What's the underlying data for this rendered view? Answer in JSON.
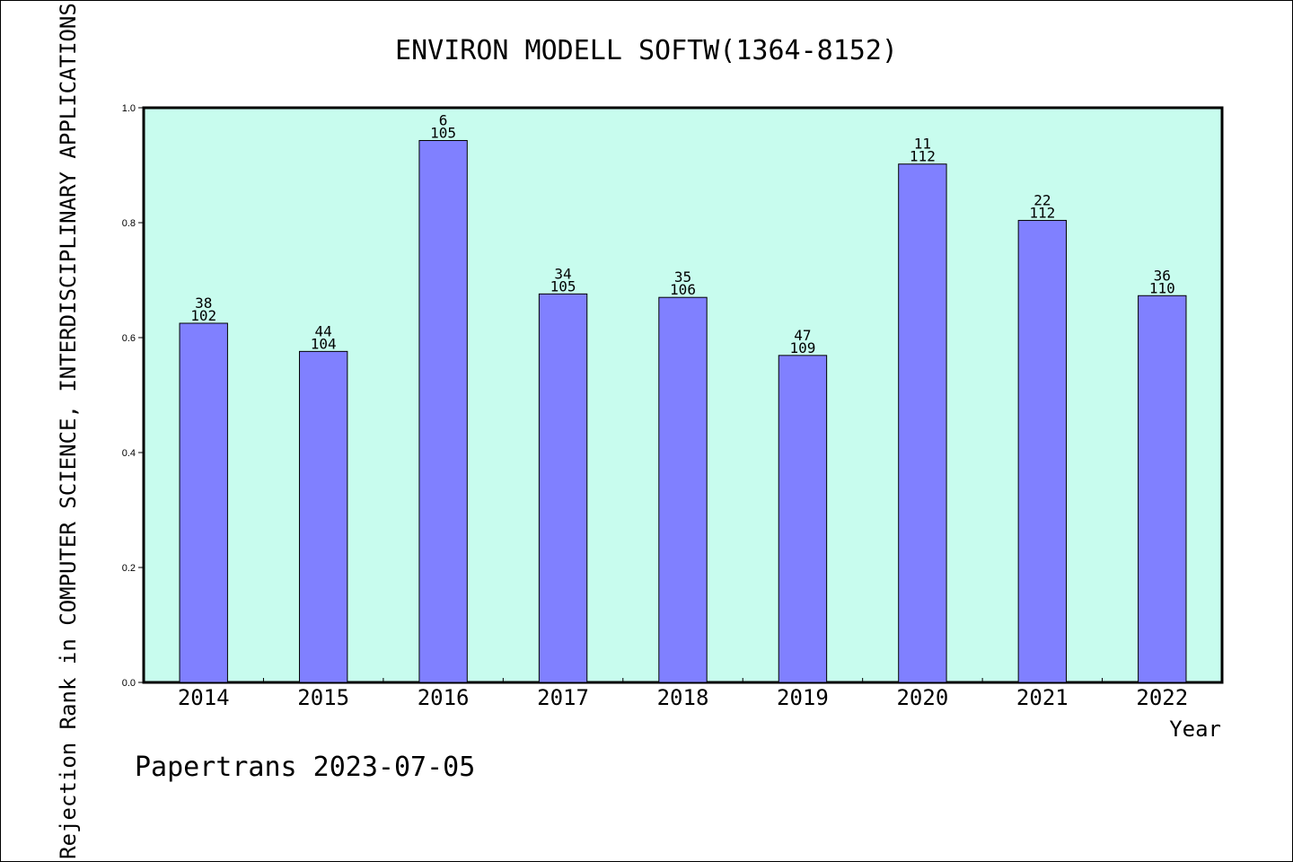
{
  "colors": {
    "plot_background": "#c8fcee",
    "bar_fill": "#8080ff",
    "bar_stroke": "#000000"
  },
  "footer": {
    "credit": "Papertrans 2023-07-05"
  },
  "chart_data": {
    "type": "bar",
    "title": "ENVIRON MODELL SOFTW(1364-8152)",
    "xlabel": "Year",
    "ylabel": "Rejection Rank in COMPUTER SCIENCE, INTERDISCIPLINARY APPLICATIONS",
    "ylim": [
      0,
      1.0
    ],
    "yticks": [
      "0.0",
      "0.2",
      "0.4",
      "0.6",
      "0.8",
      "1.0"
    ],
    "grid": false,
    "categories": [
      "2014",
      "2015",
      "2016",
      "2017",
      "2018",
      "2019",
      "2020",
      "2021",
      "2022"
    ],
    "values": [
      0.625,
      0.576,
      0.943,
      0.676,
      0.67,
      0.569,
      0.902,
      0.804,
      0.673
    ],
    "rank": [
      "38",
      "44",
      "6",
      "34",
      "35",
      "47",
      "11",
      "22",
      "36"
    ],
    "total": [
      "102",
      "104",
      "105",
      "105",
      "106",
      "109",
      "112",
      "112",
      "110"
    ]
  }
}
